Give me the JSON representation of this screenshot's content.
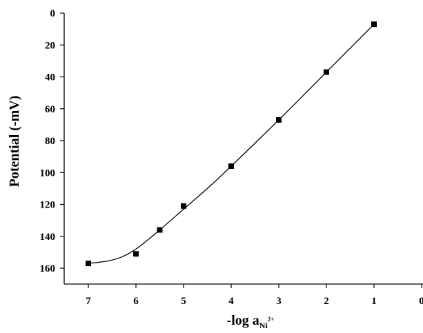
{
  "chart_data": {
    "type": "scatter",
    "title": "",
    "xlabel": "-log a",
    "xlabel_sub": "Ni",
    "xlabel_sup": "2+",
    "ylabel": "Potential (-mV)",
    "x_reversed": true,
    "y_inverted": true,
    "xlim": [
      0,
      7.4
    ],
    "ylim": [
      0,
      170
    ],
    "x_ticks": [
      7,
      6,
      5,
      4,
      3,
      2,
      1,
      0
    ],
    "y_ticks": [
      0,
      20,
      40,
      60,
      80,
      100,
      120,
      140,
      160
    ],
    "grid": false,
    "legend": "none",
    "series": [
      {
        "marker": "square",
        "color": "#000000",
        "points": [
          {
            "x": 7.0,
            "y": 157
          },
          {
            "x": 6.0,
            "y": 151
          },
          {
            "x": 5.5,
            "y": 136
          },
          {
            "x": 5.0,
            "y": 121
          },
          {
            "x": 4.0,
            "y": 96
          },
          {
            "x": 3.0,
            "y": 67
          },
          {
            "x": 2.0,
            "y": 37
          },
          {
            "x": 1.0,
            "y": 7
          }
        ]
      }
    ],
    "fit_curve": [
      {
        "x": 7.0,
        "y": 157
      },
      {
        "x": 6.6,
        "y": 155.5
      },
      {
        "x": 6.3,
        "y": 153
      },
      {
        "x": 6.0,
        "y": 148
      },
      {
        "x": 5.7,
        "y": 141
      },
      {
        "x": 5.5,
        "y": 136
      },
      {
        "x": 5.0,
        "y": 123
      },
      {
        "x": 4.5,
        "y": 110
      },
      {
        "x": 4.0,
        "y": 96
      },
      {
        "x": 3.0,
        "y": 67
      },
      {
        "x": 2.0,
        "y": 37
      },
      {
        "x": 1.0,
        "y": 7
      }
    ]
  }
}
